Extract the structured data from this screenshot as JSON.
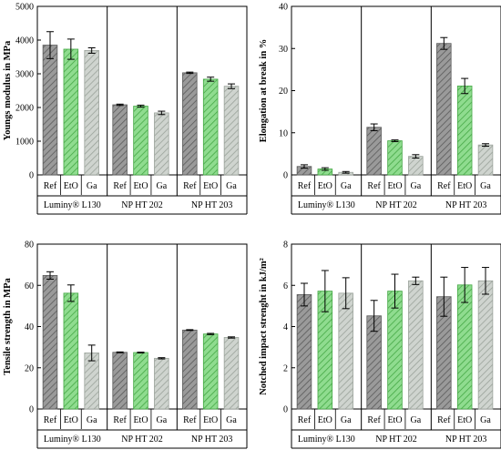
{
  "colors": {
    "Ref": "#9a9a9a",
    "EtO": "#8fdc8f",
    "Ga": "#cfd4cf",
    "hatch_Ref": "#5a5a5a",
    "hatch_EtO": "#45a845",
    "hatch_Ga": "#9aa29a"
  },
  "chart_data": [
    {
      "type": "bar",
      "ylabel": "Youngs modulus in MPa",
      "ylim": [
        0,
        5000
      ],
      "yticks": [
        "0",
        "1000",
        "2000",
        "3000",
        "4000",
        "5000"
      ],
      "groups": [
        "Luminy® L130",
        "NP HT 202",
        "NP HT 203"
      ],
      "categories": [
        "Ref",
        "EtO",
        "Ga"
      ],
      "series": [
        {
          "group": "Luminy® L130",
          "values": [
            3850,
            3730,
            3690
          ],
          "errors": [
            400,
            300,
            80
          ]
        },
        {
          "group": "NP HT 202",
          "values": [
            2080,
            2040,
            1840
          ],
          "errors": [
            20,
            30,
            50
          ]
        },
        {
          "group": "NP HT 203",
          "values": [
            3030,
            2840,
            2630
          ],
          "errors": [
            20,
            60,
            70
          ]
        }
      ]
    },
    {
      "type": "bar",
      "ylabel": "Elongation at break in %",
      "ylim": [
        0,
        40
      ],
      "yticks": [
        "0",
        "10",
        "20",
        "30",
        "40"
      ],
      "groups": [
        "Luminy® L130",
        "NP HT 202",
        "NP HT 203"
      ],
      "categories": [
        "Ref",
        "EtO",
        "Ga"
      ],
      "series": [
        {
          "group": "Luminy® L130",
          "values": [
            2.0,
            1.4,
            0.6
          ],
          "errors": [
            0.4,
            0.3,
            0.2
          ]
        },
        {
          "group": "NP HT 202",
          "values": [
            11.3,
            8.1,
            4.4
          ],
          "errors": [
            0.8,
            0.2,
            0.4
          ]
        },
        {
          "group": "NP HT 203",
          "values": [
            31.2,
            21.1,
            7.1
          ],
          "errors": [
            1.4,
            1.8,
            0.3
          ]
        }
      ]
    },
    {
      "type": "bar",
      "ylabel": "Tensile strength in MPa",
      "ylim": [
        0,
        80
      ],
      "yticks": [
        "0",
        "20",
        "40",
        "60",
        "80"
      ],
      "groups": [
        "Luminy® L130",
        "NP HT 202",
        "NP HT 203"
      ],
      "categories": [
        "Ref",
        "EtO",
        "Ga"
      ],
      "series": [
        {
          "group": "Luminy® L130",
          "values": [
            64.8,
            56.2,
            27.2
          ],
          "errors": [
            1.8,
            4.0,
            3.8
          ]
        },
        {
          "group": "NP HT 202",
          "values": [
            27.5,
            27.4,
            24.6
          ],
          "errors": [
            0.2,
            0.2,
            0.3
          ]
        },
        {
          "group": "NP HT 203",
          "values": [
            38.3,
            36.4,
            34.7
          ],
          "errors": [
            0.2,
            0.3,
            0.3
          ]
        }
      ]
    },
    {
      "type": "bar",
      "ylabel": "Notched impact strenght in kJ/m²",
      "ylim": [
        0,
        8
      ],
      "yticks": [
        "0",
        "2",
        "4",
        "6",
        "8"
      ],
      "groups": [
        "Luminy® L130",
        "NP HT 202",
        "NP HT 203"
      ],
      "categories": [
        "Ref",
        "EtO",
        "Ga"
      ],
      "series": [
        {
          "group": "Luminy® L130",
          "values": [
            5.55,
            5.72,
            5.62
          ],
          "errors": [
            0.55,
            1.0,
            0.75
          ]
        },
        {
          "group": "NP HT 202",
          "values": [
            4.52,
            5.72,
            6.22
          ],
          "errors": [
            0.75,
            0.82,
            0.18
          ]
        },
        {
          "group": "NP HT 203",
          "values": [
            5.45,
            6.02,
            6.22
          ],
          "errors": [
            0.95,
            0.85,
            0.65
          ]
        }
      ]
    }
  ]
}
